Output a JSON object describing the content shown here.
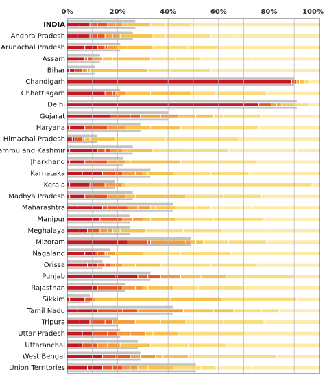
{
  "chart_data": {
    "type": "bar",
    "orientation": "horizontal",
    "x_ticks": [
      "0%",
      "20%",
      "40%",
      "60%",
      "80%",
      "100%"
    ],
    "xlim": [
      0,
      100
    ],
    "grid": true,
    "colors": {
      "background_bar": "#c4c3c3",
      "segment_palette": [
        "#c8161d",
        "#e8541c",
        "#f29a38",
        "#f6c24a",
        "#fadc7c",
        "#fcebaa"
      ],
      "segment_separator": "#ffffff",
      "gridline": "#bbbbbb",
      "frame": "#555555"
    },
    "categories": [
      "INDIA",
      "Andhra Pradesh",
      "Arunachal Pradesh",
      "Assam",
      "Bihar",
      "Chandigarh",
      "Chhattisgarh",
      "Delhi",
      "Gujarat",
      "Haryana",
      "Himachal Pradesh",
      "Jammu and Kashmir",
      "Jharkhand",
      "Karnataka",
      "Kerala",
      "Madhya Pradesh",
      "Maharashtra",
      "Manipur",
      "Meghalaya",
      "Mizoram",
      "Nagaland",
      "Orissa",
      "Punjab",
      "Rajasthan",
      "Sikkim",
      "Tamil Nadu",
      "Tripura",
      "Uttar Pradesh",
      "Uttaranchal",
      "West Bengal",
      "Union Territories"
    ],
    "bold_categories": [
      "INDIA"
    ],
    "background_values": [
      27,
      26,
      21,
      13,
      11,
      90,
      21,
      91,
      40,
      29,
      12,
      26,
      22,
      33,
      19,
      26,
      42,
      25,
      25,
      49,
      17,
      14,
      33,
      23,
      9,
      42,
      20,
      21,
      28,
      29,
      51
    ],
    "segments": [
      [
        5,
        4,
        3,
        4,
        3,
        3,
        2,
        9,
        6,
        10,
        21,
        30
      ],
      [
        4,
        5,
        3,
        3,
        3,
        3,
        2,
        11,
        5,
        18,
        11,
        32
      ],
      [
        7,
        5,
        3,
        1,
        1,
        3,
        4,
        10,
        14,
        12,
        20,
        20
      ],
      [
        5,
        2,
        1,
        2,
        1,
        3,
        4,
        15,
        10,
        10,
        20,
        27
      ],
      [
        1,
        2,
        2,
        1,
        2,
        1,
        2,
        21,
        9,
        16,
        30,
        13
      ],
      [
        89,
        2,
        1,
        2,
        2,
        4
      ],
      [
        10,
        5,
        3,
        1,
        1,
        3,
        10,
        16,
        10,
        20,
        21
      ],
      [
        70,
        6,
        5,
        2,
        2,
        5,
        3,
        3,
        4
      ],
      [
        10,
        7,
        8,
        4,
        8,
        7,
        7,
        7,
        4,
        15,
        13,
        10
      ],
      [
        1,
        6,
        4,
        5,
        4,
        3,
        10,
        12,
        16,
        15,
        24
      ],
      [
        2,
        1,
        1,
        2,
        1,
        2,
        10,
        20,
        29,
        32
      ],
      [
        1,
        11,
        3,
        2,
        3,
        2,
        2,
        10,
        15,
        15,
        27,
        9
      ],
      [
        1,
        6,
        4,
        5,
        4,
        3,
        2,
        20,
        15,
        15,
        25
      ],
      [
        6,
        8,
        5,
        3,
        5,
        3,
        2,
        10,
        15,
        15,
        28
      ],
      [
        1,
        8,
        6,
        4,
        3,
        1,
        70,
        4,
        3
      ],
      [
        1,
        6,
        4,
        5,
        4,
        3,
        4,
        20,
        15,
        15,
        23
      ],
      [
        4,
        10,
        2,
        8,
        4,
        5,
        2,
        8,
        8,
        6,
        16,
        27
      ],
      [
        10,
        3,
        4,
        5,
        4,
        4,
        3,
        10,
        15,
        20,
        22
      ],
      [
        5,
        3,
        3,
        2,
        3,
        2,
        3,
        10,
        15,
        15,
        20,
        19
      ],
      [
        20,
        4,
        8,
        1,
        14,
        2,
        2,
        3,
        10,
        15,
        21
      ],
      [
        7,
        4,
        1,
        3,
        1,
        3,
        1,
        10,
        15,
        20,
        35
      ],
      [
        8,
        4,
        3,
        2,
        2,
        3,
        5,
        10,
        20,
        18,
        25
      ],
      [
        19,
        9,
        4,
        5,
        5,
        3,
        8,
        10,
        11,
        16,
        10
      ],
      [
        10,
        2,
        5,
        5,
        5,
        3,
        2,
        10,
        10,
        18,
        30
      ],
      [
        1,
        6,
        3,
        1,
        30,
        20,
        30,
        9
      ],
      [
        4,
        8,
        10,
        6,
        8,
        10,
        12,
        8,
        11,
        7,
        10,
        6
      ],
      [
        5,
        4,
        6,
        3,
        5,
        4,
        10,
        10,
        15,
        16,
        22
      ],
      [
        6,
        4,
        6,
        4,
        5,
        6,
        3,
        10,
        11,
        15,
        30
      ],
      [
        5,
        1,
        4,
        2,
        4,
        5,
        2,
        10,
        15,
        15,
        37
      ],
      [
        10,
        4,
        5,
        6,
        4,
        6,
        3,
        10,
        15,
        20,
        17
      ],
      [
        8,
        6,
        4,
        4,
        3,
        3,
        4,
        10,
        11,
        6,
        14,
        27
      ]
    ]
  }
}
